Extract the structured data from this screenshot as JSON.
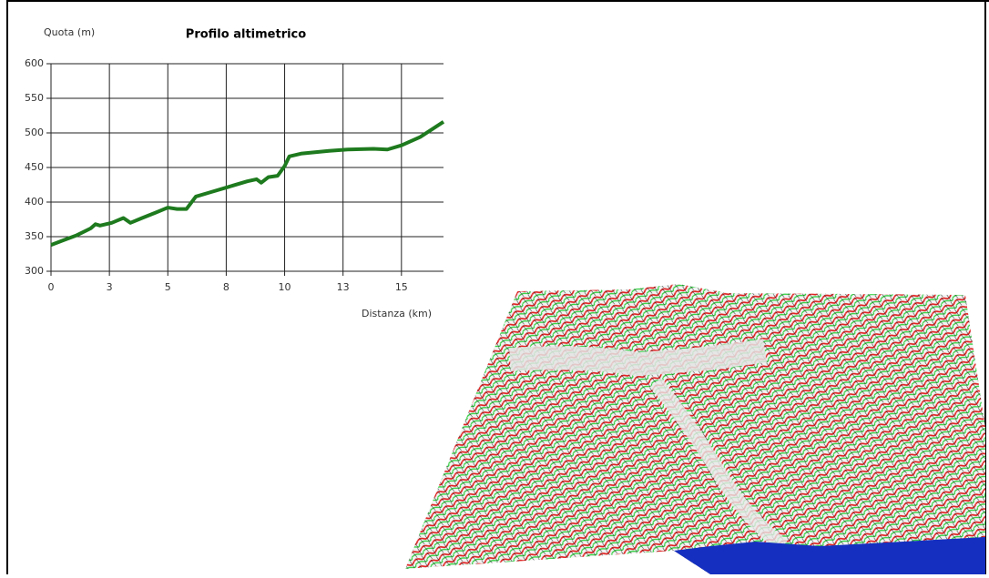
{
  "chart_data": {
    "type": "line",
    "title": "Profilo altimetrico",
    "y_label": "Quota (m)",
    "x_label": "Distanza (km)",
    "x": [
      0,
      0.55,
      1.1,
      1.7,
      1.9,
      2.1,
      2.6,
      3.1,
      3.4,
      3.9,
      4.5,
      5.0,
      5.4,
      5.8,
      6.2,
      6.8,
      7.6,
      8.4,
      8.8,
      9.0,
      9.3,
      9.7,
      10.0,
      10.2,
      10.7,
      11.9,
      12.7,
      13.8,
      14.4,
      15.0,
      15.8,
      16.8
    ],
    "series": [
      {
        "color": "#1e7a1e",
        "values": [
          338,
          345,
          352,
          362,
          368,
          366,
          370,
          377,
          370,
          377,
          385,
          392,
          390,
          390,
          408,
          414,
          422,
          430,
          433,
          428,
          436,
          438,
          452,
          466,
          470,
          474,
          476,
          477,
          476,
          482,
          494,
          516
        ]
      }
    ],
    "xlim": [
      0,
      16.8
    ],
    "ylim": [
      300,
      600
    ],
    "xticks": [
      0,
      {
        "value": 2.5,
        "label": "3"
      },
      5,
      {
        "value": 7.5,
        "label": "8"
      },
      10,
      {
        "value": 12.5,
        "label": "13"
      },
      15
    ],
    "yticks": [
      300,
      350,
      400,
      450,
      500,
      550,
      600
    ],
    "grid": true
  }
}
